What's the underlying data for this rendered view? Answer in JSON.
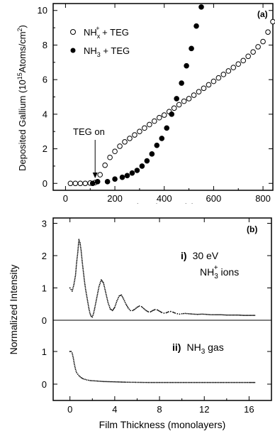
{
  "chart_data": [
    {
      "type": "scatter",
      "panel_label": "(a)",
      "xlabel": "Time (seconds)",
      "ylabel": "Deposited Gallium (10¹⁵Atoms/cm²)",
      "xlim": [
        -50,
        840
      ],
      "ylim": [
        -0.4,
        10.4
      ],
      "xticks": [
        "0",
        "200",
        "400",
        "600",
        "800"
      ],
      "yticks": [
        "0",
        "2",
        "4",
        "6",
        "8",
        "10"
      ],
      "annotation": "TEG on",
      "annotation_x": 120,
      "legend_position": "top-left",
      "series": [
        {
          "name_main": "NH",
          "name_sub": "x",
          "name_sup": "+",
          "name_tail": " + TEG",
          "marker": "open-circle",
          "x": [
            20,
            40,
            60,
            80,
            100,
            120,
            140,
            160,
            180,
            200,
            220,
            240,
            260,
            280,
            300,
            320,
            340,
            360,
            380,
            400,
            420,
            440,
            460,
            480,
            500,
            520,
            540,
            560,
            580,
            600,
            620,
            640,
            660,
            680,
            700,
            720,
            740,
            760,
            780,
            800,
            820,
            840
          ],
          "y": [
            0.0,
            0.0,
            0.0,
            0.0,
            0.02,
            0.05,
            0.5,
            1.05,
            1.5,
            1.85,
            2.15,
            2.4,
            2.6,
            2.8,
            3.0,
            3.2,
            3.4,
            3.6,
            3.8,
            3.95,
            4.15,
            4.35,
            4.55,
            4.75,
            4.9,
            5.1,
            5.3,
            5.5,
            5.7,
            5.9,
            6.1,
            6.3,
            6.5,
            6.7,
            6.9,
            7.1,
            7.35,
            7.6,
            7.9,
            8.2,
            8.75,
            9.35
          ]
        },
        {
          "name_main": "NH",
          "name_sub": "3",
          "name_sup": "",
          "name_tail": " + TEG",
          "marker": "filled-circle",
          "x": [
            110,
            130,
            170,
            200,
            230,
            250,
            270,
            290,
            310,
            330,
            350,
            370,
            390,
            410,
            430,
            450,
            470,
            490,
            510,
            530,
            550
          ],
          "y": [
            0.0,
            0.1,
            0.1,
            0.25,
            0.35,
            0.45,
            0.6,
            0.75,
            1.0,
            1.3,
            1.7,
            2.2,
            2.6,
            3.2,
            4.0,
            4.9,
            5.8,
            6.8,
            7.8,
            9.1,
            10.2
          ]
        }
      ]
    },
    {
      "type": "line",
      "panel_label": "(b)",
      "xlabel": "Film Thickness (monolayers)",
      "ylabel": "Normalized Intensity",
      "xlim": [
        -1.5,
        18
      ],
      "xticks": [
        "0",
        "4",
        "8",
        "12",
        "16"
      ],
      "upper_yticks": [
        "0",
        "1",
        "2",
        "3"
      ],
      "lower_yticks": [
        "0",
        "1"
      ],
      "series": [
        {
          "label_num": "i)",
          "label_line1": "30 eV",
          "label_main": "NH",
          "label_sub": "3",
          "label_sup": "+",
          "label_tail": " ions",
          "x": [
            0.0,
            0.1,
            0.2,
            0.35,
            0.5,
            0.6,
            0.7,
            0.8,
            0.9,
            1.0,
            1.1,
            1.2,
            1.3,
            1.4,
            1.5,
            1.6,
            1.7,
            1.8,
            1.9,
            2.0,
            2.1,
            2.2,
            2.4,
            2.6,
            2.8,
            3.0,
            3.2,
            3.4,
            3.6,
            3.8,
            4.0,
            4.2,
            4.4,
            4.6,
            4.8,
            5.0,
            5.2,
            5.4,
            5.6,
            5.8,
            6.0,
            6.2,
            6.4,
            6.6,
            6.8,
            7.0,
            7.2,
            7.4,
            7.6,
            7.8,
            8.0,
            8.2,
            8.4,
            8.6,
            8.8,
            9.0,
            9.2,
            9.4,
            9.6,
            9.8,
            10.0,
            10.3,
            10.6,
            11.0,
            11.4,
            11.8,
            12.2,
            12.6,
            13.0,
            13.5,
            14.0,
            14.5,
            15.0,
            15.5,
            16.0,
            16.5
          ],
          "y": [
            1.0,
            0.95,
            0.9,
            1.1,
            1.4,
            1.8,
            2.1,
            2.5,
            2.4,
            2.15,
            1.8,
            1.5,
            1.2,
            0.95,
            0.75,
            0.55,
            0.35,
            0.2,
            0.12,
            0.1,
            0.2,
            0.35,
            0.7,
            1.05,
            1.25,
            1.15,
            0.85,
            0.55,
            0.35,
            0.3,
            0.4,
            0.6,
            0.75,
            0.78,
            0.65,
            0.5,
            0.38,
            0.3,
            0.3,
            0.34,
            0.4,
            0.44,
            0.42,
            0.36,
            0.3,
            0.26,
            0.26,
            0.3,
            0.33,
            0.32,
            0.28,
            0.24,
            0.22,
            0.23,
            0.26,
            0.27,
            0.25,
            0.22,
            0.2,
            0.19,
            0.2,
            0.21,
            0.2,
            0.19,
            0.18,
            0.19,
            0.18,
            0.17,
            0.17,
            0.17,
            0.16,
            0.16,
            0.16,
            0.15,
            0.15,
            0.15
          ]
        },
        {
          "label_num": "ii)",
          "label_main": "NH",
          "label_sub": "3",
          "label_sup": "",
          "label_tail": " gas",
          "x": [
            0.0,
            0.1,
            0.2,
            0.3,
            0.4,
            0.5,
            0.6,
            0.8,
            1.0,
            1.2,
            1.5,
            1.8,
            2.2,
            2.6,
            3.0,
            3.5,
            4.0,
            4.5,
            5.0,
            6.0,
            7.0,
            8.0,
            9.0,
            10.0,
            11.0,
            12.0,
            13.0,
            14.0,
            15.0,
            16.0,
            16.5
          ],
          "y": [
            1.0,
            1.0,
            0.95,
            0.8,
            0.6,
            0.45,
            0.35,
            0.26,
            0.2,
            0.16,
            0.13,
            0.11,
            0.1,
            0.09,
            0.08,
            0.075,
            0.07,
            0.065,
            0.06,
            0.055,
            0.05,
            0.05,
            0.05,
            0.05,
            0.05,
            0.05,
            0.05,
            0.05,
            0.05,
            0.05,
            0.05
          ]
        }
      ]
    }
  ]
}
